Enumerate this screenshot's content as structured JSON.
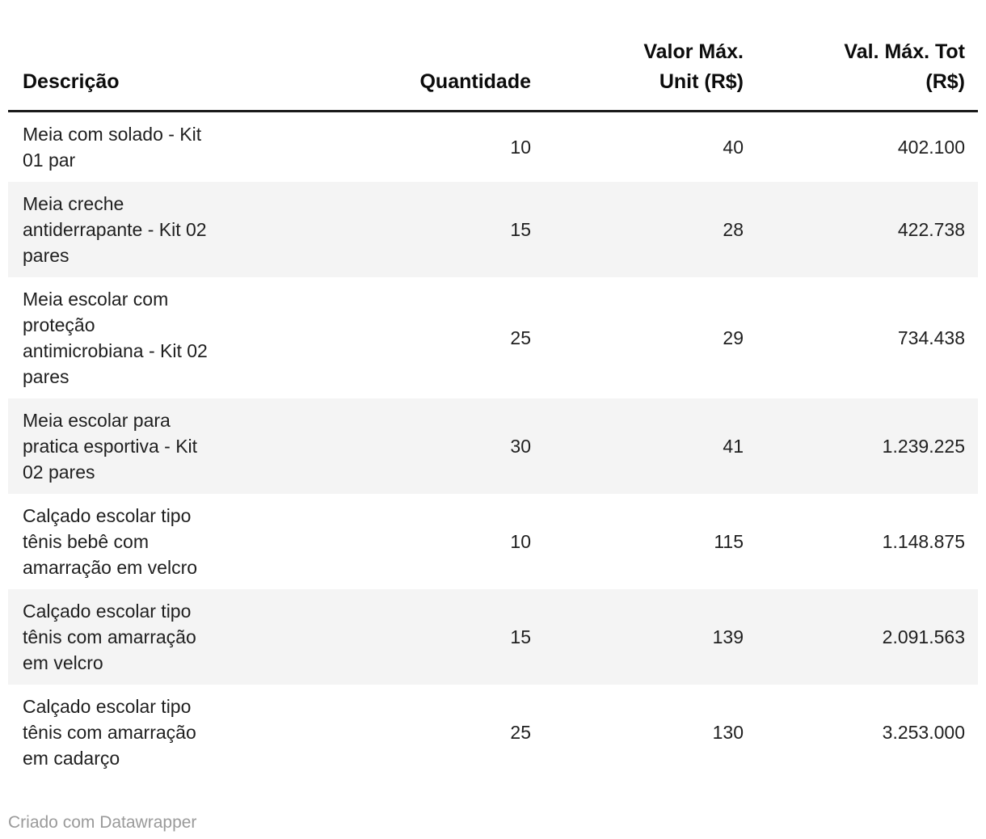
{
  "chart_data": {
    "type": "table",
    "title": "",
    "columns": [
      {
        "label": "Descrição",
        "display": "Descrição",
        "align": "left"
      },
      {
        "label": "Quantidade",
        "display": "Quantidade",
        "align": "right"
      },
      {
        "label": "Valor Máx. Unit (R$)",
        "display": "Valor Máx.\nUnit (R$)",
        "align": "right"
      },
      {
        "label": "Val. Máx. Tot (R$)",
        "display": "Val. Máx. Tot\n(R$)",
        "align": "right"
      }
    ],
    "rows": [
      {
        "descricao": "Meia com solado - Kit 01 par",
        "descricao_display": "Meia com solado - Kit\n01 par",
        "quantidade": "10",
        "valor_max_unit": "40",
        "val_max_tot": "402.100"
      },
      {
        "descricao": "Meia creche antiderrapante - Kit 02 pares",
        "descricao_display": "Meia creche\nantiderrapante - Kit 02\npares",
        "quantidade": "15",
        "valor_max_unit": "28",
        "val_max_tot": "422.738"
      },
      {
        "descricao": "Meia escolar com proteção antimicrobiana - Kit 02 pares",
        "descricao_display": "Meia escolar com\nproteção\nantimicrobiana - Kit 02\npares",
        "quantidade": "25",
        "valor_max_unit": "29",
        "val_max_tot": "734.438"
      },
      {
        "descricao": "Meia escolar para pratica esportiva - Kit 02 pares",
        "descricao_display": "Meia escolar para\npratica esportiva - Kit\n02 pares",
        "quantidade": "30",
        "valor_max_unit": "41",
        "val_max_tot": "1.239.225"
      },
      {
        "descricao": "Calçado escolar tipo tênis bebê com amarração em velcro",
        "descricao_display": "Calçado escolar tipo\ntênis bebê com\namarração em velcro",
        "quantidade": "10",
        "valor_max_unit": "115",
        "val_max_tot": "1.148.875"
      },
      {
        "descricao": "Calçado escolar tipo tênis com amarração em velcro",
        "descricao_display": "Calçado escolar tipo\ntênis com amarração\nem velcro",
        "quantidade": "15",
        "valor_max_unit": "139",
        "val_max_tot": "2.091.563"
      },
      {
        "descricao": "Calçado escolar tipo tênis com amarração em cadarço",
        "descricao_display": "Calçado escolar tipo\ntênis com amarração\nem cadarço",
        "quantidade": "25",
        "valor_max_unit": "130",
        "val_max_tot": "3.253.000"
      }
    ]
  },
  "footer": {
    "credit": "Criado com Datawrapper"
  },
  "colors": {
    "stripe": "#f4f4f4",
    "header_rule": "#1a1a1a",
    "header_text": "#0c0c0c",
    "body_text": "#1f1f1f",
    "muted_text": "#9a9a9a"
  }
}
